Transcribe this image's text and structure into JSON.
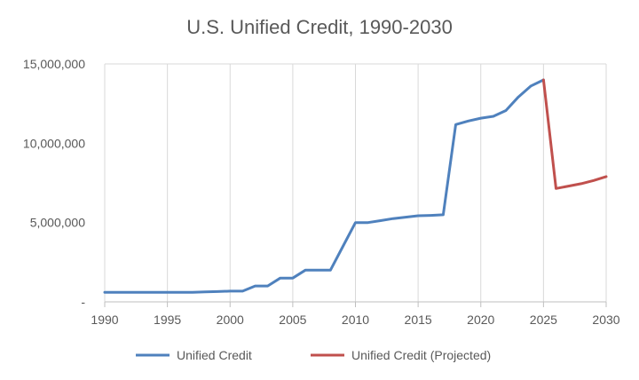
{
  "chart_data": {
    "type": "line",
    "title": "U.S. Unified Credit, 1990-2030",
    "xlabel": "",
    "ylabel": "",
    "xlim": [
      1990,
      2030
    ],
    "ylim": [
      0,
      15000000
    ],
    "x_ticks": [
      1990,
      1995,
      2000,
      2005,
      2010,
      2015,
      2020,
      2025,
      2030
    ],
    "x_tick_labels": [
      "1990",
      "1995",
      "2000",
      "2005",
      "2010",
      "2015",
      "2020",
      "2025",
      "2030"
    ],
    "y_ticks": [
      0,
      5000000,
      10000000,
      15000000
    ],
    "y_tick_labels": [
      "-",
      "5,000,000",
      "10,000,000",
      "15,000,000"
    ],
    "grid": "vertical",
    "legend_position": "bottom",
    "series": [
      {
        "name": "Unified Credit",
        "color": "#4f81bd",
        "x": [
          1990,
          1991,
          1992,
          1993,
          1994,
          1995,
          1996,
          1997,
          1998,
          1999,
          2000,
          2001,
          2002,
          2003,
          2004,
          2005,
          2006,
          2007,
          2008,
          2009,
          2010,
          2011,
          2012,
          2013,
          2014,
          2015,
          2016,
          2017,
          2018,
          2019,
          2020,
          2021,
          2022,
          2023,
          2024,
          2025
        ],
        "y": [
          600000,
          600000,
          600000,
          600000,
          600000,
          600000,
          600000,
          600000,
          625000,
          650000,
          675000,
          675000,
          1000000,
          1000000,
          1500000,
          1500000,
          2000000,
          2000000,
          2000000,
          3500000,
          5000000,
          5000000,
          5120000,
          5250000,
          5340000,
          5430000,
          5450000,
          5490000,
          11180000,
          11400000,
          11580000,
          11700000,
          12060000,
          12920000,
          13610000,
          13990000
        ]
      },
      {
        "name": "Unified Credit (Projected)",
        "color": "#c0504d",
        "x": [
          2025,
          2026,
          2027,
          2028,
          2029,
          2030
        ],
        "y": [
          13990000,
          7150000,
          7300000,
          7450000,
          7650000,
          7900000
        ]
      }
    ]
  }
}
